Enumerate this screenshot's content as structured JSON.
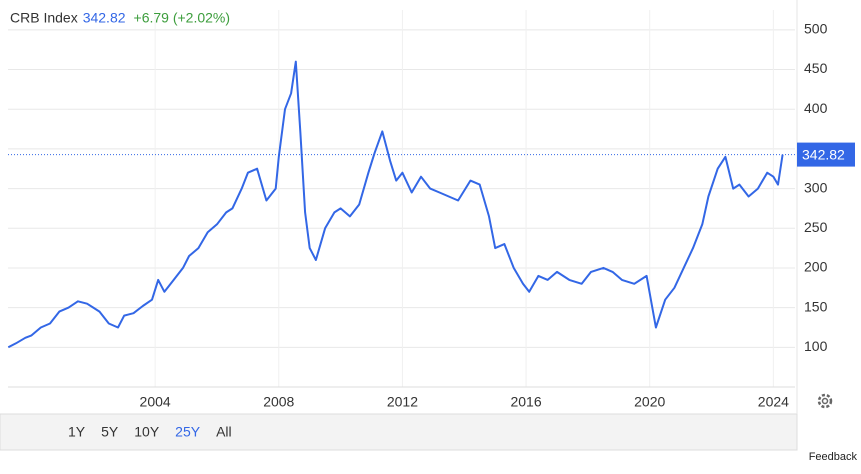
{
  "chart_data": {
    "type": "line",
    "title": "CRB Index",
    "last_value": 342.82,
    "change": "+6.79 (+2.02%)",
    "color": "#3367e6",
    "grid": true,
    "x": [
      1999.25,
      1999.5,
      1999.8,
      2000.0,
      2000.3,
      2000.6,
      2000.9,
      2001.2,
      2001.5,
      2001.8,
      2002.0,
      2002.2,
      2002.5,
      2002.8,
      2003.0,
      2003.3,
      2003.6,
      2003.9,
      2004.1,
      2004.3,
      2004.6,
      2004.9,
      2005.1,
      2005.4,
      2005.7,
      2006.0,
      2006.3,
      2006.5,
      2006.8,
      2007.0,
      2007.3,
      2007.6,
      2007.9,
      2008.0,
      2008.2,
      2008.4,
      2008.55,
      2008.7,
      2008.85,
      2009.0,
      2009.2,
      2009.5,
      2009.8,
      2010.0,
      2010.3,
      2010.6,
      2010.9,
      2011.1,
      2011.35,
      2011.6,
      2011.8,
      2012.0,
      2012.3,
      2012.6,
      2012.9,
      2013.2,
      2013.5,
      2013.8,
      2014.2,
      2014.5,
      2014.8,
      2015.0,
      2015.3,
      2015.6,
      2015.9,
      2016.1,
      2016.4,
      2016.7,
      2017.0,
      2017.4,
      2017.8,
      2018.1,
      2018.5,
      2018.8,
      2019.1,
      2019.5,
      2019.9,
      2020.2,
      2020.5,
      2020.8,
      2021.1,
      2021.4,
      2021.7,
      2021.9,
      2022.2,
      2022.45,
      2022.7,
      2022.9,
      2023.2,
      2023.5,
      2023.8,
      2024.0,
      2024.15,
      2024.3
    ],
    "values": [
      100,
      105,
      112,
      115,
      125,
      130,
      145,
      150,
      158,
      155,
      150,
      145,
      130,
      125,
      140,
      143,
      152,
      160,
      185,
      170,
      185,
      200,
      215,
      225,
      245,
      255,
      270,
      275,
      300,
      320,
      325,
      285,
      300,
      340,
      400,
      420,
      460,
      370,
      270,
      225,
      210,
      250,
      270,
      275,
      265,
      280,
      320,
      345,
      372,
      335,
      310,
      320,
      295,
      315,
      300,
      295,
      290,
      285,
      310,
      305,
      265,
      225,
      230,
      200,
      180,
      170,
      190,
      185,
      195,
      185,
      180,
      195,
      200,
      195,
      185,
      180,
      190,
      125,
      160,
      175,
      200,
      225,
      255,
      290,
      325,
      340,
      300,
      305,
      290,
      300,
      320,
      315,
      305,
      342.82
    ],
    "xlim": [
      1999.24,
      2024.7
    ],
    "xticks": [
      2004,
      2008,
      2012,
      2016,
      2020,
      2024
    ],
    "ylim": [
      50,
      525
    ],
    "yticks": [
      100,
      150,
      200,
      250,
      300,
      350,
      400,
      450,
      500
    ]
  },
  "range_buttons": [
    "1Y",
    "5Y",
    "10Y",
    "25Y",
    "All"
  ],
  "selected_range": 3,
  "feedback": "Feedback"
}
